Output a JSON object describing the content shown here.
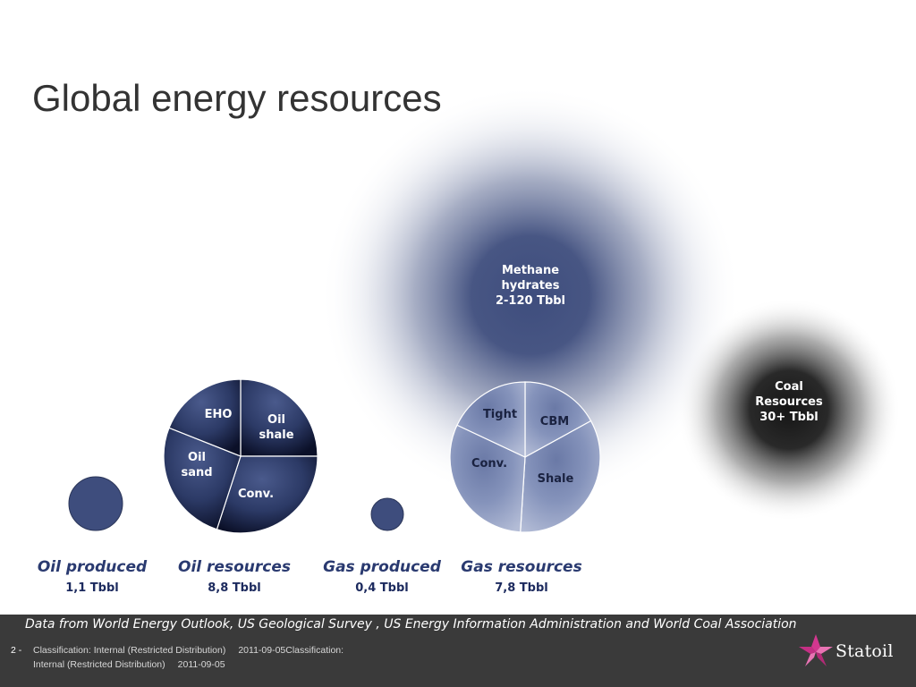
{
  "title": "Global energy resources",
  "chart_data": {
    "type": "pie",
    "units": "Tbbl",
    "categories": [
      {
        "name": "Oil produced",
        "value_label": "1,1 Tbbl",
        "value": 1.1
      },
      {
        "name": "Oil resources",
        "value_label": "8,8 Tbbl",
        "value": 8.8,
        "slices": [
          {
            "label": "EHO",
            "share": 0.25
          },
          {
            "label": "Oil shale",
            "share": 0.3
          },
          {
            "label": "Conv.",
            "share": 0.26
          },
          {
            "label": "Oil sand",
            "share": 0.19
          }
        ]
      },
      {
        "name": "Gas produced",
        "value_label": "0,4 Tbbl",
        "value": 0.4
      },
      {
        "name": "Gas resources",
        "value_label": "7,8 Tbbl",
        "value": 7.8,
        "slices": [
          {
            "label": "CBM",
            "share": 0.17
          },
          {
            "label": "Shale",
            "share": 0.34
          },
          {
            "label": "Conv.",
            "share": 0.31
          },
          {
            "label": "Tight",
            "share": 0.18
          }
        ]
      }
    ],
    "halos": [
      {
        "label": "Methane hydrates 2-120 Tbbl",
        "lines": [
          "Methane",
          "hydrates",
          "2-120 Tbbl"
        ]
      },
      {
        "label": "Coal Resources 30+ Tbbl",
        "lines": [
          "Coal",
          "Resources",
          "30+ Tbbl"
        ]
      }
    ]
  },
  "footer": {
    "source": "Data from World Energy Outlook, US Geological Survey , US Energy Information Administration and World Coal Association",
    "slide_number": "2 -",
    "classification": "Classification: Internal (Restricted Distribution)",
    "date": "2011-09-05",
    "classification_trail": "Classification:",
    "classification_line2": "Internal (Restricted Distribution)",
    "date2": "2011-09-05",
    "logo_text": "Statoil"
  },
  "colors": {
    "navy": "#3e4d7d",
    "navy_dark": "#0f1530",
    "slate": "#8c98ba",
    "slate_light": "#a9b3cf",
    "title": "#333333",
    "footer_bg": "#3a3a3a",
    "logo_pink": "#d2378f"
  }
}
